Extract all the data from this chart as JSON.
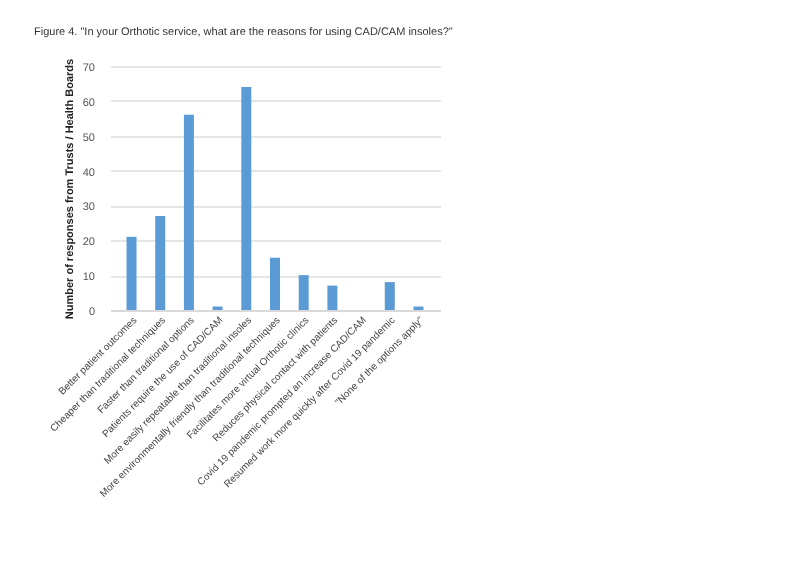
{
  "chart_data": {
    "type": "bar",
    "title": "Figure 4. \"In your Orthotic service, what are the reasons for using CAD/CAM insoles?\"",
    "ylabel": "Number of responses from Trusts / Health Boards",
    "categories": [
      "Better patient outcomes",
      "Cheaper than traditional techniques",
      "Faster than traditional options",
      "Patients require the use of CAD/CAM",
      "More easily repeatable than traditional insoles",
      "More environmentally friendly than traditional techniques",
      "Facilitates more virtual Orthotic clinics",
      "Reduces physical contact with patients",
      "Covid 19 pandemic prompted an increase CAD/CAM",
      "Resumed work more quickly after Covid 19 pandemic",
      "\"None of the options apply\""
    ],
    "values": [
      21,
      27,
      56,
      1,
      64,
      15,
      10,
      7,
      0,
      8,
      1
    ],
    "color": "#5b9bd5",
    "ylim": [
      0,
      70
    ],
    "yticks": [
      0,
      10,
      20,
      30,
      40,
      50,
      60,
      70
    ],
    "grid": "y"
  }
}
